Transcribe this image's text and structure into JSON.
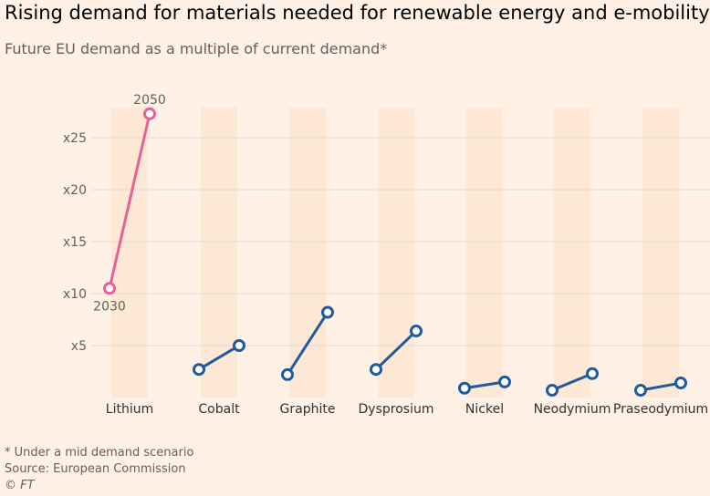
{
  "title": "Rising demand for materials needed for renewable energy and e-mobility",
  "subtitle": "Future EU demand as a multiple of current demand*",
  "footnote": "* Under a mid demand scenario",
  "source": "Source: European Commission",
  "credit": "© FT",
  "chart_data": {
    "type": "dot-line",
    "title": "Rising demand for materials needed for renewable energy and e-mobility",
    "subtitle": "Future EU demand as a multiple of current demand*",
    "categories": [
      "Lithium",
      "Cobalt",
      "Graphite",
      "Dysprosium",
      "Nickel",
      "Neodymium",
      "Praseodymium"
    ],
    "series": [
      {
        "name": "2030",
        "values": [
          10.5,
          2.7,
          2.2,
          2.7,
          0.9,
          0.7,
          0.7
        ]
      },
      {
        "name": "2050",
        "values": [
          27.3,
          5.0,
          8.2,
          6.4,
          1.5,
          2.3,
          1.4
        ]
      }
    ],
    "highlight": "Lithium",
    "yticks": [
      {
        "value": 5,
        "label": "x5"
      },
      {
        "value": 10,
        "label": "x10"
      },
      {
        "value": 15,
        "label": "x15"
      },
      {
        "value": 20,
        "label": "x20"
      },
      {
        "value": 25,
        "label": "x25"
      }
    ],
    "ylim": [
      0,
      28
    ],
    "grid": true,
    "colors": {
      "highlight": "#e8609a",
      "default": "#1f5a9c",
      "band": "#fde8d6",
      "grid": "#e6d9ce",
      "background": "#fff1e5"
    }
  }
}
